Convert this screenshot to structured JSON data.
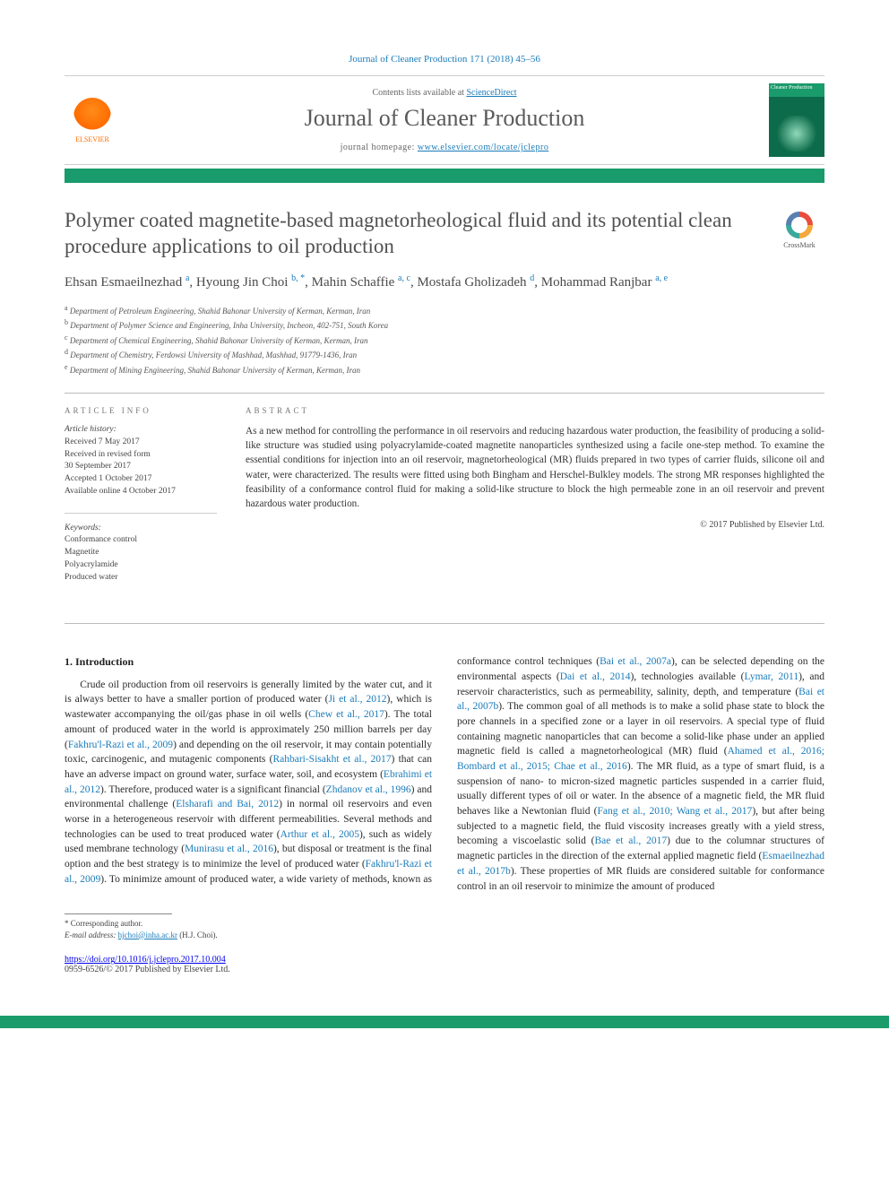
{
  "colors": {
    "brand_green": "#1a9b6b",
    "link_blue": "#1a7bb9",
    "text_body": "#2a2a2a",
    "text_muted": "#666666",
    "rule": "#bbbbbb",
    "elsevier_orange": "#ff6b00"
  },
  "typography": {
    "body_pt": 11.5,
    "title_pt": 23,
    "journal_pt": 26,
    "abstract_pt": 11.2,
    "footnote_pt": 9
  },
  "header": {
    "citation": "Journal of Cleaner Production 171 (2018) 45–56",
    "contents_prefix": "Contents lists available at ",
    "contents_link": "ScienceDirect",
    "journal_title": "Journal of Cleaner Production",
    "home_prefix": "journal homepage: ",
    "home_link": "www.elsevier.com/locate/jclepro",
    "elsevier_label": "ELSEVIER",
    "cover_label": "Cleaner Production"
  },
  "crossmark": {
    "label": "CrossMark"
  },
  "article": {
    "title": "Polymer coated magnetite-based magnetorheological fluid and its potential clean procedure applications to oil production",
    "authors_html": "Ehsan Esmaeilnezhad <sup>a</sup>, Hyoung Jin Choi <sup>b, *</sup>, Mahin Schaffie <sup>a, c</sup>, Mostafa Gholizadeh <sup>d</sup>, Mohammad Ranjbar <sup>a, e</sup>",
    "affiliations": [
      "a Department of Petroleum Engineering, Shahid Bahonar University of Kerman, Kerman, Iran",
      "b Department of Polymer Science and Engineering, Inha University, Incheon, 402-751, South Korea",
      "c Department of Chemical Engineering, Shahid Bahonar University of Kerman, Kerman, Iran",
      "d Department of Chemistry, Ferdowsi University of Mashhad, Mashhad, 91779-1436, Iran",
      "e Department of Mining Engineering, Shahid Bahonar University of Kerman, Kerman, Iran"
    ]
  },
  "info": {
    "head": "ARTICLE INFO",
    "history_label": "Article history:",
    "history": [
      "Received 7 May 2017",
      "Received in revised form",
      "30 September 2017",
      "Accepted 1 October 2017",
      "Available online 4 October 2017"
    ],
    "keywords_label": "Keywords:",
    "keywords": [
      "Conformance control",
      "Magnetite",
      "Polyacrylamide",
      "Produced water"
    ]
  },
  "abstract": {
    "head": "ABSTRACT",
    "text": "As a new method for controlling the performance in oil reservoirs and reducing hazardous water production, the feasibility of producing a solid-like structure was studied using polyacrylamide-coated magnetite nanoparticles synthesized using a facile one-step method. To examine the essential conditions for injection into an oil reservoir, magnetorheological (MR) fluids prepared in two types of carrier fluids, silicone oil and water, were characterized. The results were fitted using both Bingham and Herschel-Bulkley models. The strong MR responses highlighted the feasibility of a conformance control fluid for making a solid-like structure to block the high permeable zone in an oil reservoir and prevent hazardous water production.",
    "copyright": "© 2017 Published by Elsevier Ltd."
  },
  "body": {
    "section_head": "1. Introduction",
    "para1_a": "Crude oil production from oil reservoirs is generally limited by the water cut, and it is always better to have a smaller portion of produced water (",
    "ref1": "Ji et al., 2012",
    "para1_b": "), which is wastewater accompanying the oil/gas phase in oil wells (",
    "ref2": "Chew et al., 2017",
    "para1_c": "). The total amount of produced water in the world is approximately 250 million barrels per day (",
    "ref3": "Fakhru'l-Razi et al., 2009",
    "para1_d": ") and depending on the oil reservoir, it may contain potentially toxic, carcinogenic, and mutagenic components (",
    "ref4": "Rahbari-Sisakht et al., 2017",
    "para1_e": ") that can have an adverse impact on ground water, surface water, soil, and ecosystem (",
    "ref5": "Ebrahimi et al., 2012",
    "para1_f": "). Therefore, produced water is a significant financial (",
    "ref6": "Zhdanov et al., 1996",
    "para1_g": ") and environmental challenge (",
    "ref7": "Elsharafi and Bai, 2012",
    "para1_h": ") in normal oil reservoirs and even worse in a heterogeneous reservoir with different permeabilities. Several methods and technologies can be used to treat produced water (",
    "ref8": "Arthur et al., 2005",
    "para1_i": "), such as widely used membrane technology (",
    "ref9": "Munirasu et al., 2016",
    "para1_j": "), but disposal or treatment is the final option and the best strategy is to minimize the level of produced ",
    "para2_a": "water (",
    "ref10": "Fakhru'l-Razi et al., 2009",
    "para2_b": "). To minimize amount of produced water, a wide variety of methods, known as conformance control techniques (",
    "ref11": "Bai et al., 2007a",
    "para2_c": "), can be selected depending on the environmental aspects (",
    "ref12": "Dai et al., 2014",
    "para2_d": "), technologies available (",
    "ref13": "Lymar, 2011",
    "para2_e": "), and reservoir characteristics, such as permeability, salinity, depth, and temperature (",
    "ref14": "Bai et al., 2007b",
    "para2_f": "). The common goal of all methods is to make a solid phase state to block the pore channels in a specified zone or a layer in oil reservoirs. A special type of fluid containing magnetic nanoparticles that can become a solid-like phase under an applied magnetic field is called a magnetorheological (MR) fluid (",
    "ref15": "Ahamed et al., 2016; Bombard et al., 2015; Chae et al., 2016",
    "para2_g": "). The MR fluid, as a type of smart fluid, is a suspension of nano- to micron-sized magnetic particles suspended in a carrier fluid, usually different types of oil or water. In the absence of a magnetic field, the MR fluid behaves like a Newtonian fluid (",
    "ref16": "Fang et al., 2010; Wang et al., 2017",
    "para2_h": "), but after being subjected to a magnetic field, the fluid viscosity increases greatly with a yield stress, becoming a viscoelastic solid (",
    "ref17": "Bae et al., 2017",
    "para2_i": ") due to the columnar structures of magnetic particles in the direction of the external applied magnetic field (",
    "ref18": "Esmaeilnezhad et al., 2017b",
    "para2_j": "). These properties of MR fluids are considered suitable for conformance control in an oil reservoir to minimize the amount of produced"
  },
  "footnote": {
    "corr": "* Corresponding author.",
    "email_label": "E-mail address: ",
    "email": "hjchoi@inha.ac.kr",
    "email_suffix": " (H.J. Choi)."
  },
  "footer": {
    "doi": "https://doi.org/10.1016/j.jclepro.2017.10.004",
    "issn": "0959-6526/© 2017 Published by Elsevier Ltd."
  }
}
